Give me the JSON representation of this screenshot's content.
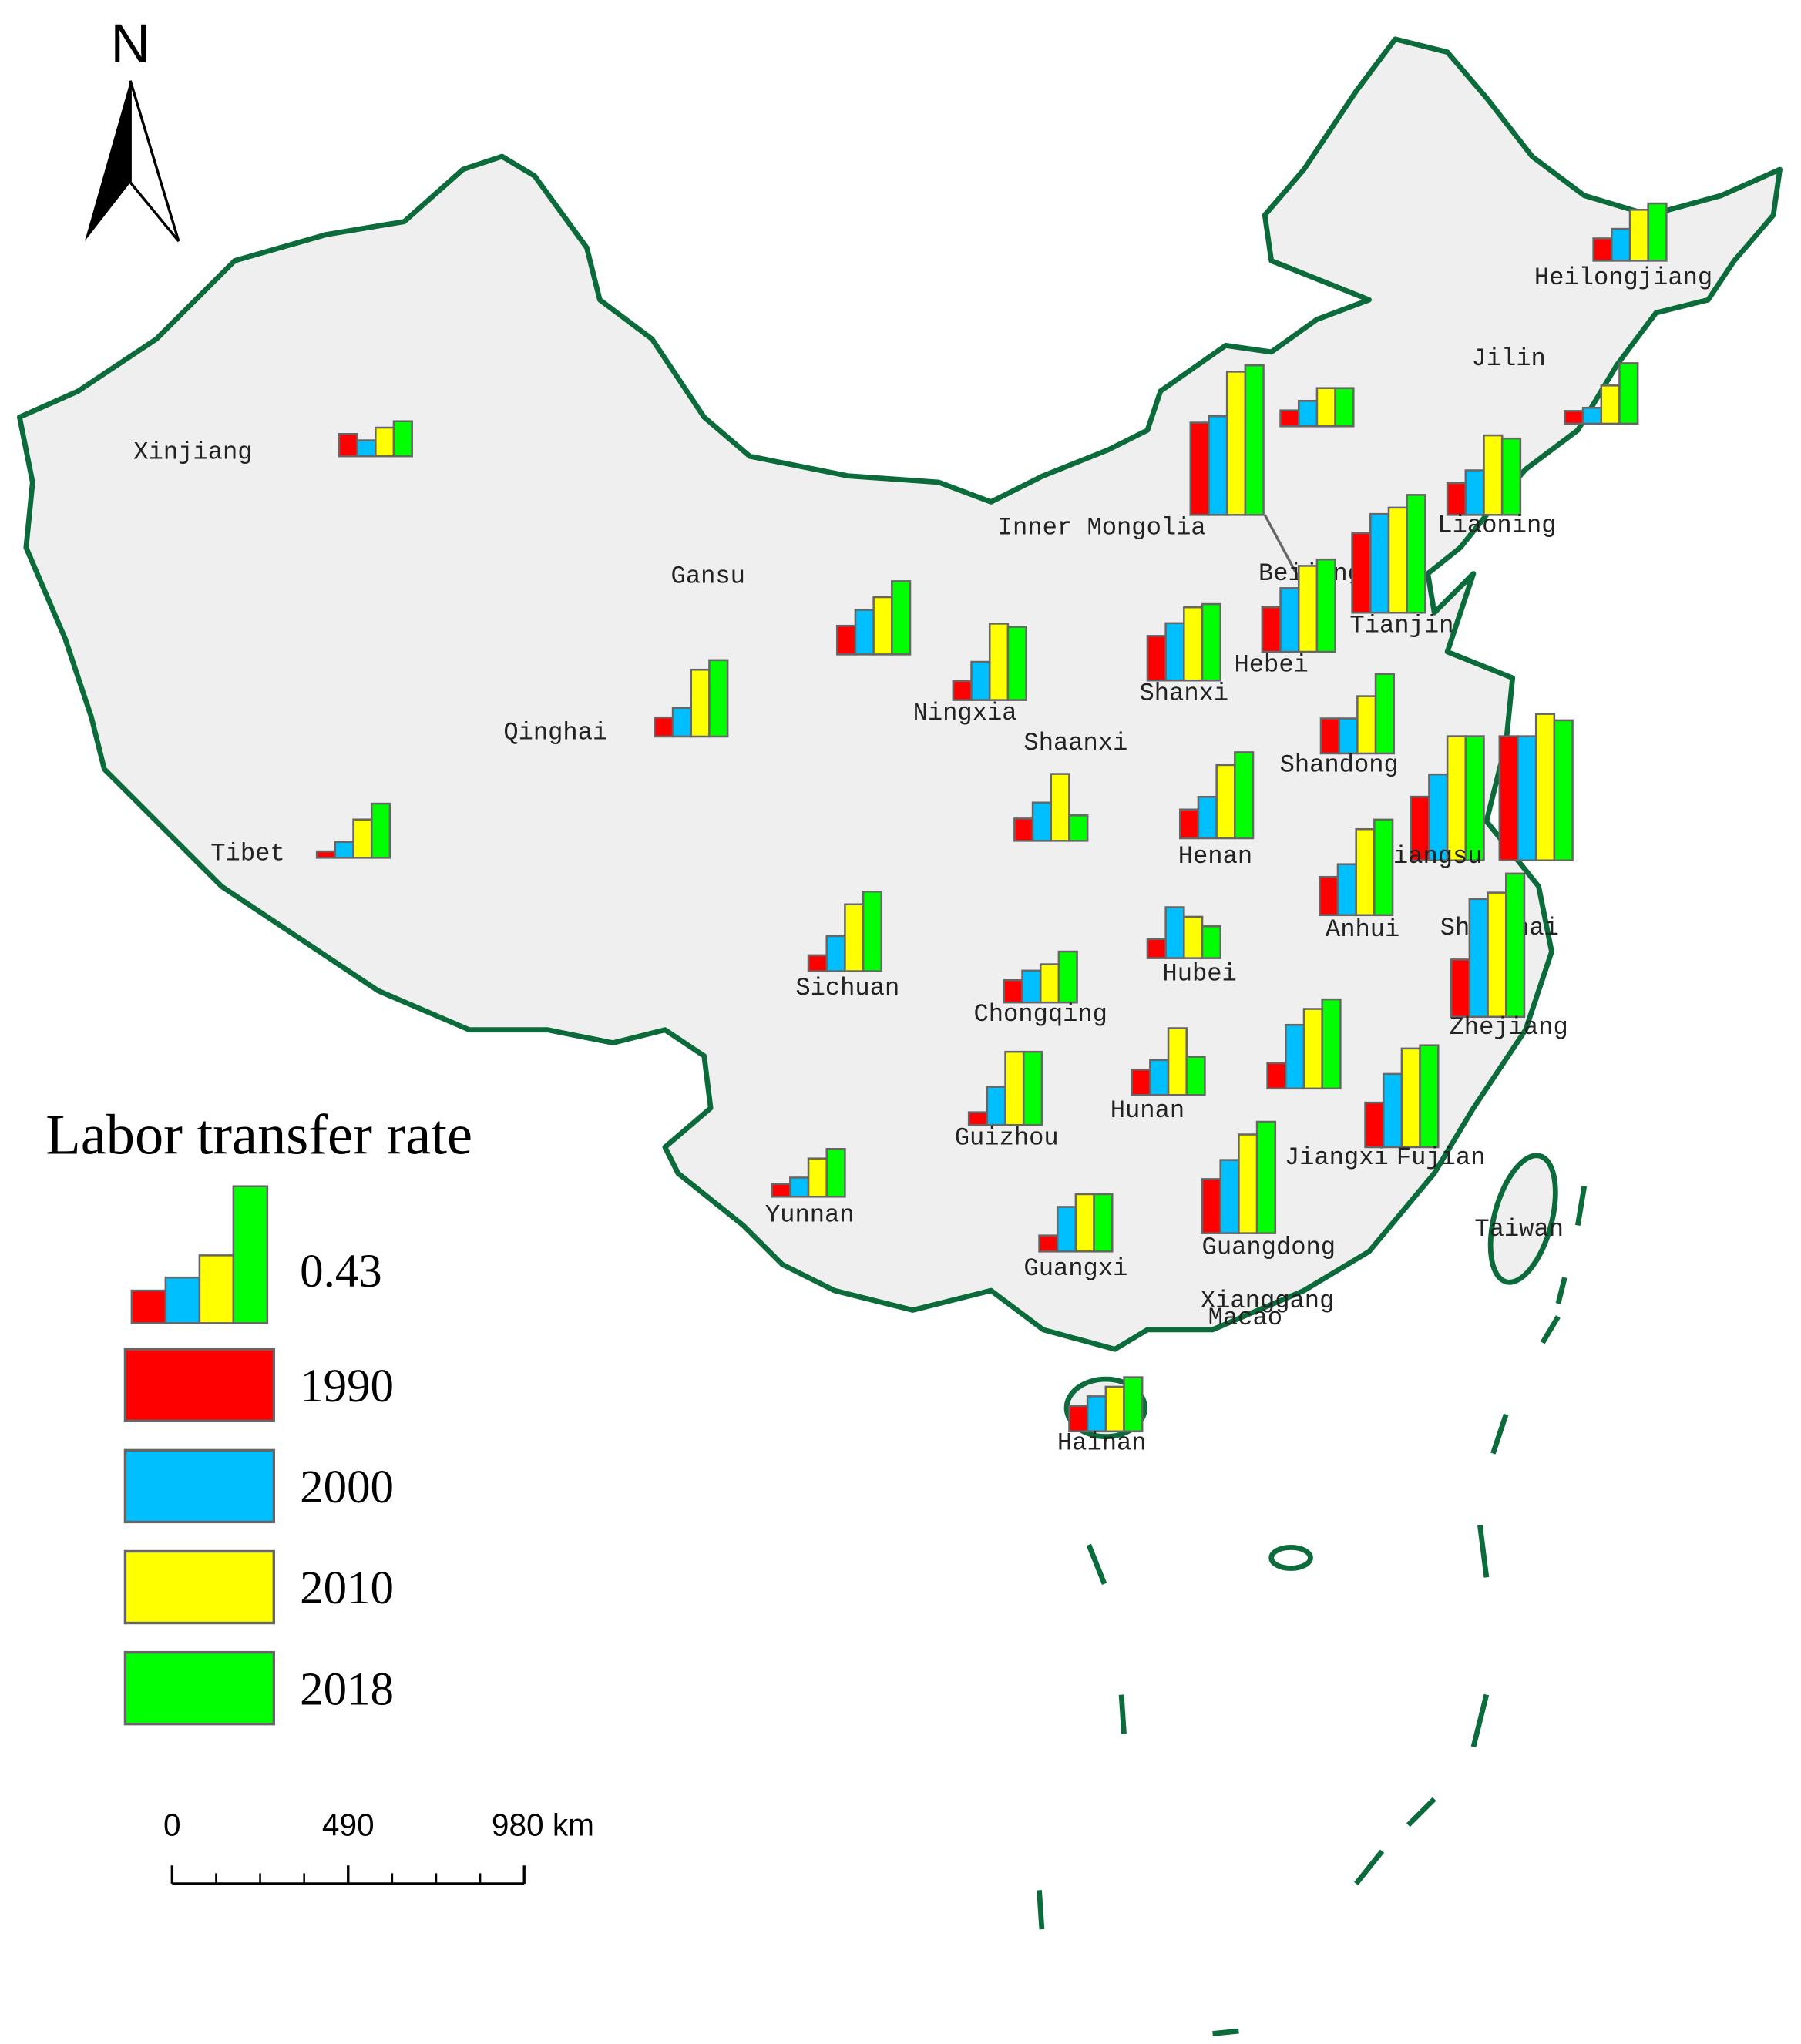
{
  "north": "N",
  "legend": {
    "title": "Labor transfer rate",
    "reference_value": 0.43,
    "years": [
      {
        "label": "1990",
        "color": "#ff0000"
      },
      {
        "label": "2000",
        "color": "#00bfff"
      },
      {
        "label": "2010",
        "color": "#ffff00"
      },
      {
        "label": "2018",
        "color": "#00ff00"
      }
    ]
  },
  "provinces": [
    {
      "name": "Heilongjiang",
      "values": [
        0.07,
        0.1,
        0.16,
        0.18
      ]
    },
    {
      "name": "Jilin",
      "values": [
        0.04,
        0.05,
        0.12,
        0.19
      ]
    },
    {
      "name": "Liaoning",
      "values": [
        0.1,
        0.14,
        0.25,
        0.24
      ]
    },
    {
      "name": "Inner Mongolia",
      "values": [
        0.05,
        0.08,
        0.12,
        0.12
      ]
    },
    {
      "name": "Beijing",
      "values": [
        0.29,
        0.31,
        0.45,
        0.47
      ]
    },
    {
      "name": "Tianjin",
      "values": [
        0.25,
        0.31,
        0.33,
        0.37
      ]
    },
    {
      "name": "Hebei",
      "values": [
        0.14,
        0.2,
        0.27,
        0.29
      ]
    },
    {
      "name": "Shanxi",
      "values": [
        0.14,
        0.18,
        0.23,
        0.24
      ]
    },
    {
      "name": "Shandong",
      "values": [
        0.11,
        0.11,
        0.18,
        0.25
      ]
    },
    {
      "name": "Jiangsu",
      "values": [
        0.2,
        0.27,
        0.39,
        0.39
      ]
    },
    {
      "name": "Shanghai",
      "values": [
        0.39,
        0.39,
        0.46,
        0.44
      ]
    },
    {
      "name": "Zhejiang",
      "values": [
        0.18,
        0.37,
        0.39,
        0.45
      ]
    },
    {
      "name": "Anhui",
      "values": [
        0.12,
        0.16,
        0.27,
        0.3
      ]
    },
    {
      "name": "Henan",
      "values": [
        0.09,
        0.13,
        0.23,
        0.27
      ]
    },
    {
      "name": "Hubei",
      "values": [
        0.06,
        0.16,
        0.13,
        0.1
      ]
    },
    {
      "name": "Hunan",
      "values": [
        0.08,
        0.11,
        0.21,
        0.12
      ]
    },
    {
      "name": "Jiangxi",
      "values": [
        0.08,
        0.2,
        0.25,
        0.28
      ]
    },
    {
      "name": "Fujian",
      "values": [
        0.14,
        0.23,
        0.31,
        0.32
      ]
    },
    {
      "name": "Guangdong",
      "values": [
        0.17,
        0.23,
        0.31,
        0.35
      ]
    },
    {
      "name": "Guangxi",
      "values": [
        0.05,
        0.14,
        0.18,
        0.18
      ]
    },
    {
      "name": "Hainan",
      "values": [
        0.08,
        0.11,
        0.14,
        0.17
      ]
    },
    {
      "name": "Guizhou",
      "values": [
        0.04,
        0.12,
        0.23,
        0.23
      ]
    },
    {
      "name": "Chongqing",
      "values": [
        0.07,
        0.1,
        0.12,
        0.16
      ]
    },
    {
      "name": "Yunnan",
      "values": [
        0.04,
        0.06,
        0.12,
        0.15
      ]
    },
    {
      "name": "Sichuan",
      "values": [
        0.05,
        0.11,
        0.21,
        0.25
      ]
    },
    {
      "name": "Shaanxi",
      "values": [
        0.07,
        0.12,
        0.21,
        0.08
      ]
    },
    {
      "name": "Ningxia",
      "values": [
        0.06,
        0.12,
        0.24,
        0.23
      ]
    },
    {
      "name": "Gansu",
      "values": [
        0.09,
        0.14,
        0.18,
        0.23
      ]
    },
    {
      "name": "Qinghai",
      "values": [
        0.06,
        0.09,
        0.21,
        0.24
      ]
    },
    {
      "name": "Tibet",
      "values": [
        0.02,
        0.05,
        0.12,
        0.17
      ]
    },
    {
      "name": "Xinjiang",
      "values": [
        0.07,
        0.05,
        0.09,
        0.11
      ]
    }
  ],
  "other_labels": [
    "Taiwan",
    "Xianggang",
    "Macao"
  ],
  "scale_bar": {
    "ticks": [
      0,
      490,
      {
        "value": 980,
        "label": "980 km"
      }
    ]
  }
}
